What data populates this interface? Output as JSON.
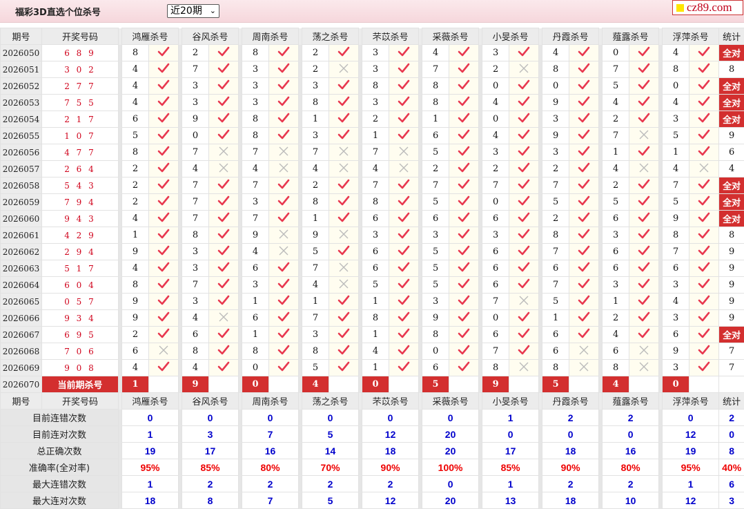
{
  "header": {
    "title": "福彩3D直选个位杀号",
    "period_select": "近20期",
    "logo_text": "cz89.com"
  },
  "columns": {
    "period": "期号",
    "draw": "开奖号码",
    "stat": "统计",
    "predictors": [
      "鸿雁杀号",
      "谷风杀号",
      "周南杀号",
      "荡之杀号",
      "芣苡杀号",
      "采薇杀号",
      "小旻杀号",
      "丹霞杀号",
      "薤露杀号",
      "浮萍杀号"
    ]
  },
  "colors": {
    "check": "#e8384f",
    "cross": "#bbbbbb",
    "accent": "#d32f2f",
    "summary_value": "#0000cc"
  },
  "all_correct_label": "全对",
  "rows": [
    {
      "period": "2026050",
      "draw": "6 8 9",
      "kills": [
        "8",
        "2",
        "8",
        "2",
        "3",
        "4",
        "3",
        "4",
        "0",
        "4"
      ],
      "stat": "全对"
    },
    {
      "period": "2026051",
      "draw": "3 0 2",
      "kills": [
        "4",
        "7",
        "3",
        "2",
        "3",
        "7",
        "2",
        "8",
        "7",
        "8"
      ],
      "stat": "8"
    },
    {
      "period": "2026052",
      "draw": "2 7 7",
      "kills": [
        "4",
        "3",
        "3",
        "3",
        "8",
        "8",
        "0",
        "0",
        "5",
        "0"
      ],
      "stat": "全对"
    },
    {
      "period": "2026053",
      "draw": "7 5 5",
      "kills": [
        "4",
        "3",
        "3",
        "8",
        "3",
        "8",
        "4",
        "9",
        "4",
        "4"
      ],
      "stat": "全对"
    },
    {
      "period": "2026054",
      "draw": "2 1 7",
      "kills": [
        "6",
        "9",
        "8",
        "1",
        "2",
        "1",
        "0",
        "3",
        "2",
        "3"
      ],
      "stat": "全对"
    },
    {
      "period": "2026055",
      "draw": "1 0 7",
      "kills": [
        "5",
        "0",
        "8",
        "3",
        "1",
        "6",
        "4",
        "9",
        "7",
        "5"
      ],
      "stat": "9"
    },
    {
      "period": "2026056",
      "draw": "4 7 7",
      "kills": [
        "8",
        "7",
        "7",
        "7",
        "7",
        "5",
        "3",
        "3",
        "1",
        "1"
      ],
      "stat": "6"
    },
    {
      "period": "2026057",
      "draw": "2 6 4",
      "kills": [
        "2",
        "4",
        "4",
        "4",
        "4",
        "2",
        "2",
        "2",
        "4",
        "4"
      ],
      "stat": "4"
    },
    {
      "period": "2026058",
      "draw": "5 4 3",
      "kills": [
        "2",
        "7",
        "7",
        "2",
        "7",
        "7",
        "7",
        "7",
        "2",
        "7"
      ],
      "stat": "全对"
    },
    {
      "period": "2026059",
      "draw": "7 9 4",
      "kills": [
        "2",
        "7",
        "3",
        "8",
        "8",
        "5",
        "0",
        "5",
        "5",
        "5"
      ],
      "stat": "全对"
    },
    {
      "period": "2026060",
      "draw": "9 4 3",
      "kills": [
        "4",
        "7",
        "7",
        "1",
        "6",
        "6",
        "6",
        "2",
        "6",
        "9"
      ],
      "stat": "全对"
    },
    {
      "period": "2026061",
      "draw": "4 2 9",
      "kills": [
        "1",
        "8",
        "9",
        "9",
        "3",
        "3",
        "3",
        "8",
        "3",
        "8"
      ],
      "stat": "8"
    },
    {
      "period": "2026062",
      "draw": "2 9 4",
      "kills": [
        "9",
        "3",
        "4",
        "5",
        "6",
        "5",
        "6",
        "7",
        "6",
        "7"
      ],
      "stat": "9"
    },
    {
      "period": "2026063",
      "draw": "5 1 7",
      "kills": [
        "4",
        "3",
        "6",
        "7",
        "6",
        "5",
        "6",
        "6",
        "6",
        "6"
      ],
      "stat": "9"
    },
    {
      "period": "2026064",
      "draw": "6 0 4",
      "kills": [
        "8",
        "7",
        "3",
        "4",
        "5",
        "5",
        "6",
        "7",
        "3",
        "3"
      ],
      "stat": "9"
    },
    {
      "period": "2026065",
      "draw": "0 5 7",
      "kills": [
        "9",
        "3",
        "1",
        "1",
        "1",
        "3",
        "7",
        "5",
        "1",
        "4"
      ],
      "stat": "9"
    },
    {
      "period": "2026066",
      "draw": "9 3 4",
      "kills": [
        "9",
        "4",
        "6",
        "7",
        "8",
        "9",
        "0",
        "1",
        "2",
        "3"
      ],
      "stat": "9"
    },
    {
      "period": "2026067",
      "draw": "6 9 5",
      "kills": [
        "2",
        "6",
        "1",
        "3",
        "1",
        "8",
        "6",
        "6",
        "4",
        "6"
      ],
      "stat": "全对"
    },
    {
      "period": "2026068",
      "draw": "7 0 6",
      "kills": [
        "6",
        "8",
        "8",
        "8",
        "4",
        "0",
        "7",
        "6",
        "6",
        "9"
      ],
      "stat": "7"
    },
    {
      "period": "2026069",
      "draw": "9 0 8",
      "kills": [
        "4",
        "4",
        "0",
        "5",
        "1",
        "6",
        "8",
        "8",
        "8",
        "3"
      ],
      "stat": "7"
    }
  ],
  "current": {
    "period": "2026070",
    "label": "当前期杀号",
    "kills": [
      "1",
      "9",
      "0",
      "4",
      "0",
      "5",
      "9",
      "5",
      "4",
      "0"
    ]
  },
  "summary": [
    {
      "label": "目前连错次数",
      "values": [
        "0",
        "0",
        "0",
        "0",
        "0",
        "0",
        "1",
        "2",
        "2",
        "0"
      ],
      "stat": "2"
    },
    {
      "label": "目前连对次数",
      "values": [
        "1",
        "3",
        "7",
        "5",
        "12",
        "20",
        "0",
        "0",
        "0",
        "12"
      ],
      "stat": "0"
    },
    {
      "label": "总正确次数",
      "values": [
        "19",
        "17",
        "16",
        "14",
        "18",
        "20",
        "17",
        "18",
        "16",
        "19"
      ],
      "stat": "8"
    },
    {
      "label": "准确率(全对率)",
      "values": [
        "95%",
        "85%",
        "80%",
        "70%",
        "90%",
        "100%",
        "85%",
        "90%",
        "80%",
        "95%"
      ],
      "stat": "40%",
      "red": true
    },
    {
      "label": "最大连错次数",
      "values": [
        "1",
        "2",
        "2",
        "2",
        "2",
        "0",
        "1",
        "2",
        "2",
        "1"
      ],
      "stat": "6"
    },
    {
      "label": "最大连对次数",
      "values": [
        "18",
        "8",
        "7",
        "5",
        "12",
        "20",
        "13",
        "18",
        "10",
        "12"
      ],
      "stat": "3"
    }
  ]
}
